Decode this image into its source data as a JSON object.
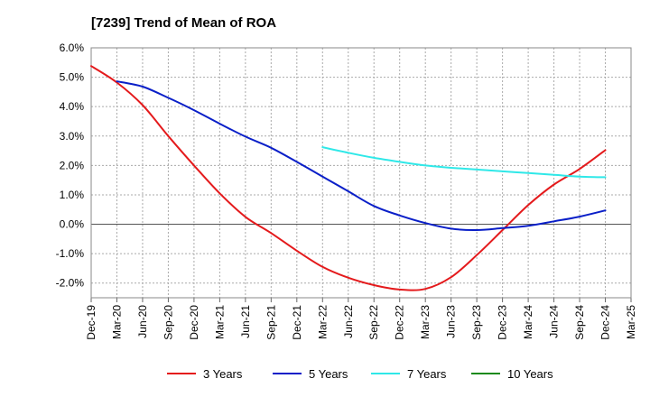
{
  "chart_data": {
    "type": "line",
    "title": "[7239]  Trend of Mean of ROA",
    "xlabel": "",
    "ylabel": "",
    "ylim": [
      -2.5,
      6.0
    ],
    "yticks": [
      6.0,
      5.0,
      4.0,
      3.0,
      2.0,
      1.0,
      0.0,
      -1.0,
      -2.0
    ],
    "ytick_labels": [
      "6.0%",
      "5.0%",
      "4.0%",
      "3.0%",
      "2.0%",
      "1.0%",
      "0.0%",
      "-1.0%",
      "-2.0%"
    ],
    "categories": [
      "Dec-19",
      "Mar-20",
      "Jun-20",
      "Sep-20",
      "Dec-20",
      "Mar-21",
      "Jun-21",
      "Sep-21",
      "Dec-21",
      "Mar-22",
      "Jun-22",
      "Sep-22",
      "Dec-22",
      "Mar-23",
      "Jun-23",
      "Sep-23",
      "Dec-23",
      "Mar-24",
      "Jun-24",
      "Sep-24",
      "Dec-24",
      "Mar-25"
    ],
    "grid": true,
    "legend_position": "bottom",
    "series": [
      {
        "name": "3 Years",
        "color": "#e41a1c",
        "values": [
          5.38,
          4.82,
          4.05,
          3.0,
          2.0,
          1.05,
          0.25,
          -0.3,
          -0.9,
          -1.45,
          -1.82,
          -2.07,
          -2.22,
          -2.2,
          -1.8,
          -1.05,
          -0.2,
          0.65,
          1.35,
          1.88,
          2.52,
          null
        ]
      },
      {
        "name": "5 Years",
        "color": "#0a1fc8",
        "values": [
          null,
          4.86,
          4.68,
          4.3,
          3.88,
          3.42,
          2.98,
          2.6,
          2.12,
          1.62,
          1.12,
          0.62,
          0.3,
          0.04,
          -0.15,
          -0.2,
          -0.13,
          -0.05,
          0.1,
          0.26,
          0.47,
          null
        ]
      },
      {
        "name": "7 Years",
        "color": "#2fe8e8",
        "values": [
          null,
          null,
          null,
          null,
          null,
          null,
          null,
          null,
          null,
          2.62,
          2.43,
          2.26,
          2.12,
          2.0,
          1.92,
          1.86,
          1.8,
          1.74,
          1.68,
          1.62,
          1.6,
          null
        ]
      },
      {
        "name": "10 Years",
        "color": "#1a8a1a",
        "values": [
          null,
          null,
          null,
          null,
          null,
          null,
          null,
          null,
          null,
          null,
          null,
          null,
          null,
          null,
          null,
          null,
          null,
          null,
          null,
          null,
          null,
          null
        ]
      }
    ]
  }
}
